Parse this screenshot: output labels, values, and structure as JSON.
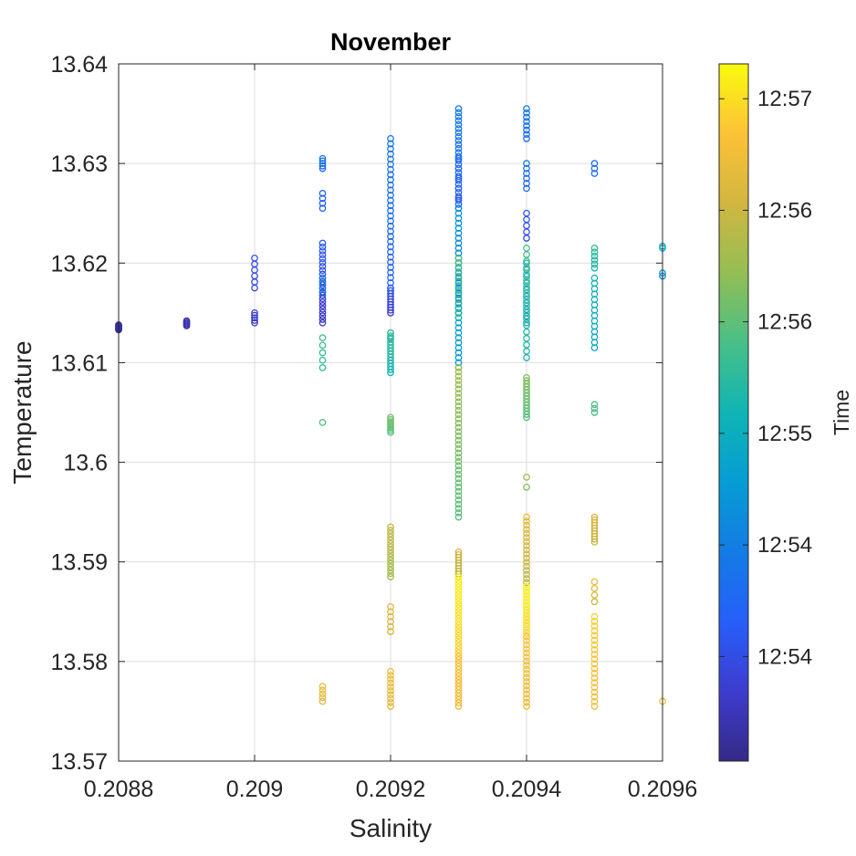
{
  "chart_data": {
    "type": "scatter",
    "title": "November",
    "xlabel": "Salinity",
    "ylabel": "Temperature",
    "xlim": [
      0.2088,
      0.2096
    ],
    "ylim": [
      13.57,
      13.64
    ],
    "xticks": [
      "0.2088",
      "0.209",
      "0.2092",
      "0.2094",
      "0.2096"
    ],
    "yticks": [
      "13.57",
      "13.58",
      "13.59",
      "13.6",
      "13.61",
      "13.62",
      "13.63",
      "13.64"
    ],
    "grid": true,
    "marker": "open-circle",
    "colorbar": {
      "title": "Time",
      "colormap": "parula",
      "tick_labels": [
        "12:54",
        "12:54",
        "12:55",
        "12:56",
        "12:56",
        "12:57"
      ],
      "tick_positions": [
        0.15,
        0.31,
        0.47,
        0.63,
        0.79,
        0.95
      ]
    },
    "series": [
      {
        "x": 0.2088,
        "segments": [
          {
            "t0": 0.01,
            "t1": 0.04,
            "y0": 13.6133,
            "y1": 13.6138,
            "n": 10
          }
        ]
      },
      {
        "x": 0.2089,
        "segments": [
          {
            "t0": 0.05,
            "t1": 0.06,
            "y0": 13.6137,
            "y1": 13.6142,
            "n": 5
          }
        ]
      },
      {
        "x": 0.209,
        "segments": [
          {
            "t0": 0.08,
            "t1": 0.11,
            "y0": 13.614,
            "y1": 13.615,
            "n": 5
          },
          {
            "t0": 0.12,
            "t1": 0.16,
            "y0": 13.6175,
            "y1": 13.6205,
            "n": 6
          }
        ]
      },
      {
        "x": 0.2091,
        "segments": [
          {
            "t0": 0.08,
            "t1": 0.14,
            "y0": 13.614,
            "y1": 13.6185,
            "n": 14
          },
          {
            "t0": 0.15,
            "t1": 0.18,
            "y0": 13.6185,
            "y1": 13.622,
            "n": 10
          },
          {
            "t0": 0.27,
            "t1": 0.33,
            "y0": 13.617,
            "y1": 13.6185,
            "n": 4
          },
          {
            "t0": 0.2,
            "t1": 0.24,
            "y0": 13.6255,
            "y1": 13.627,
            "n": 4
          },
          {
            "t0": 0.24,
            "t1": 0.28,
            "y0": 13.6295,
            "y1": 13.6305,
            "n": 5
          },
          {
            "t0": 0.56,
            "t1": 0.58,
            "y0": 13.6095,
            "y1": 13.6125,
            "n": 5
          },
          {
            "t0": 0.61,
            "t1": 0.61,
            "y0": 13.604,
            "y1": 13.604,
            "n": 1
          },
          {
            "t0": 0.83,
            "t1": 0.86,
            "y0": 13.576,
            "y1": 13.5775,
            "n": 5
          }
        ]
      },
      {
        "x": 0.2092,
        "segments": [
          {
            "t0": 0.1,
            "t1": 0.16,
            "y0": 13.615,
            "y1": 13.6175,
            "n": 10
          },
          {
            "t0": 0.2,
            "t1": 0.3,
            "y0": 13.6175,
            "y1": 13.6325,
            "n": 30
          },
          {
            "t0": 0.42,
            "t1": 0.48,
            "y0": 13.6125,
            "y1": 13.613,
            "n": 2
          },
          {
            "t0": 0.5,
            "t1": 0.57,
            "y0": 13.609,
            "y1": 13.613,
            "n": 14
          },
          {
            "t0": 0.62,
            "t1": 0.66,
            "y0": 13.603,
            "y1": 13.6045,
            "n": 8
          },
          {
            "t0": 0.72,
            "t1": 0.78,
            "y0": 13.5885,
            "y1": 13.5935,
            "n": 16
          },
          {
            "t0": 0.8,
            "t1": 0.84,
            "y0": 13.583,
            "y1": 13.5855,
            "n": 6
          },
          {
            "t0": 0.84,
            "t1": 0.87,
            "y0": 13.5755,
            "y1": 13.579,
            "n": 10
          }
        ]
      },
      {
        "x": 0.2093,
        "segments": [
          {
            "t0": 0.22,
            "t1": 0.3,
            "y0": 13.6255,
            "y1": 13.6355,
            "n": 26
          },
          {
            "t0": 0.16,
            "t1": 0.22,
            "y0": 13.6255,
            "y1": 13.6305,
            "n": 6
          },
          {
            "t0": 0.3,
            "t1": 0.38,
            "y0": 13.615,
            "y1": 13.6255,
            "n": 22
          },
          {
            "t0": 0.38,
            "t1": 0.44,
            "y0": 13.6095,
            "y1": 13.615,
            "n": 12
          },
          {
            "t0": 0.52,
            "t1": 0.6,
            "y0": 13.6145,
            "y1": 13.6205,
            "n": 14
          },
          {
            "t0": 0.62,
            "t1": 0.72,
            "y0": 13.5945,
            "y1": 13.6095,
            "n": 36
          },
          {
            "t0": 0.76,
            "t1": 0.8,
            "y0": 13.5885,
            "y1": 13.591,
            "n": 10
          },
          {
            "t0": 0.92,
            "t1": 0.98,
            "y0": 13.5805,
            "y1": 13.5885,
            "n": 24
          },
          {
            "t0": 0.86,
            "t1": 0.9,
            "y0": 13.5755,
            "y1": 13.5805,
            "n": 16
          }
        ]
      },
      {
        "x": 0.2094,
        "segments": [
          {
            "t0": 0.24,
            "t1": 0.3,
            "y0": 13.6325,
            "y1": 13.6355,
            "n": 8
          },
          {
            "t0": 0.24,
            "t1": 0.28,
            "y0": 13.6275,
            "y1": 13.63,
            "n": 6
          },
          {
            "t0": 0.14,
            "t1": 0.18,
            "y0": 13.6225,
            "y1": 13.625,
            "n": 5
          },
          {
            "t0": 0.42,
            "t1": 0.48,
            "y0": 13.614,
            "y1": 13.62,
            "n": 10
          },
          {
            "t0": 0.52,
            "t1": 0.6,
            "y0": 13.6105,
            "y1": 13.6215,
            "n": 18
          },
          {
            "t0": 0.62,
            "t1": 0.68,
            "y0": 13.6045,
            "y1": 13.6085,
            "n": 14
          },
          {
            "t0": 0.68,
            "t1": 0.72,
            "y0": 13.5975,
            "y1": 13.5985,
            "n": 2
          },
          {
            "t0": 0.76,
            "t1": 0.84,
            "y0": 13.5875,
            "y1": 13.5945,
            "n": 18
          },
          {
            "t0": 0.93,
            "t1": 0.99,
            "y0": 13.5825,
            "y1": 13.5875,
            "n": 16
          },
          {
            "t0": 0.86,
            "t1": 0.9,
            "y0": 13.5755,
            "y1": 13.5825,
            "n": 18
          }
        ]
      },
      {
        "x": 0.2095,
        "segments": [
          {
            "t0": 0.22,
            "t1": 0.26,
            "y0": 13.629,
            "y1": 13.63,
            "n": 3
          },
          {
            "t0": 0.42,
            "t1": 0.5,
            "y0": 13.6115,
            "y1": 13.6185,
            "n": 14
          },
          {
            "t0": 0.52,
            "t1": 0.56,
            "y0": 13.6195,
            "y1": 13.6215,
            "n": 6
          },
          {
            "t0": 0.6,
            "t1": 0.62,
            "y0": 13.605,
            "y1": 13.6058,
            "n": 3
          },
          {
            "t0": 0.78,
            "t1": 0.82,
            "y0": 13.592,
            "y1": 13.5945,
            "n": 10
          },
          {
            "t0": 0.8,
            "t1": 0.86,
            "y0": 13.586,
            "y1": 13.588,
            "n": 4
          },
          {
            "t0": 0.88,
            "t1": 0.92,
            "y0": 13.5755,
            "y1": 13.5845,
            "n": 20
          }
        ]
      },
      {
        "x": 0.2096,
        "segments": [
          {
            "t0": 0.46,
            "t1": 0.48,
            "y0": 13.6215,
            "y1": 13.6217,
            "n": 2
          },
          {
            "t0": 0.34,
            "t1": 0.36,
            "y0": 13.6187,
            "y1": 13.619,
            "n": 2
          },
          {
            "t0": 0.86,
            "t1": 0.86,
            "y0": 13.576,
            "y1": 13.576,
            "n": 1
          }
        ]
      }
    ]
  }
}
